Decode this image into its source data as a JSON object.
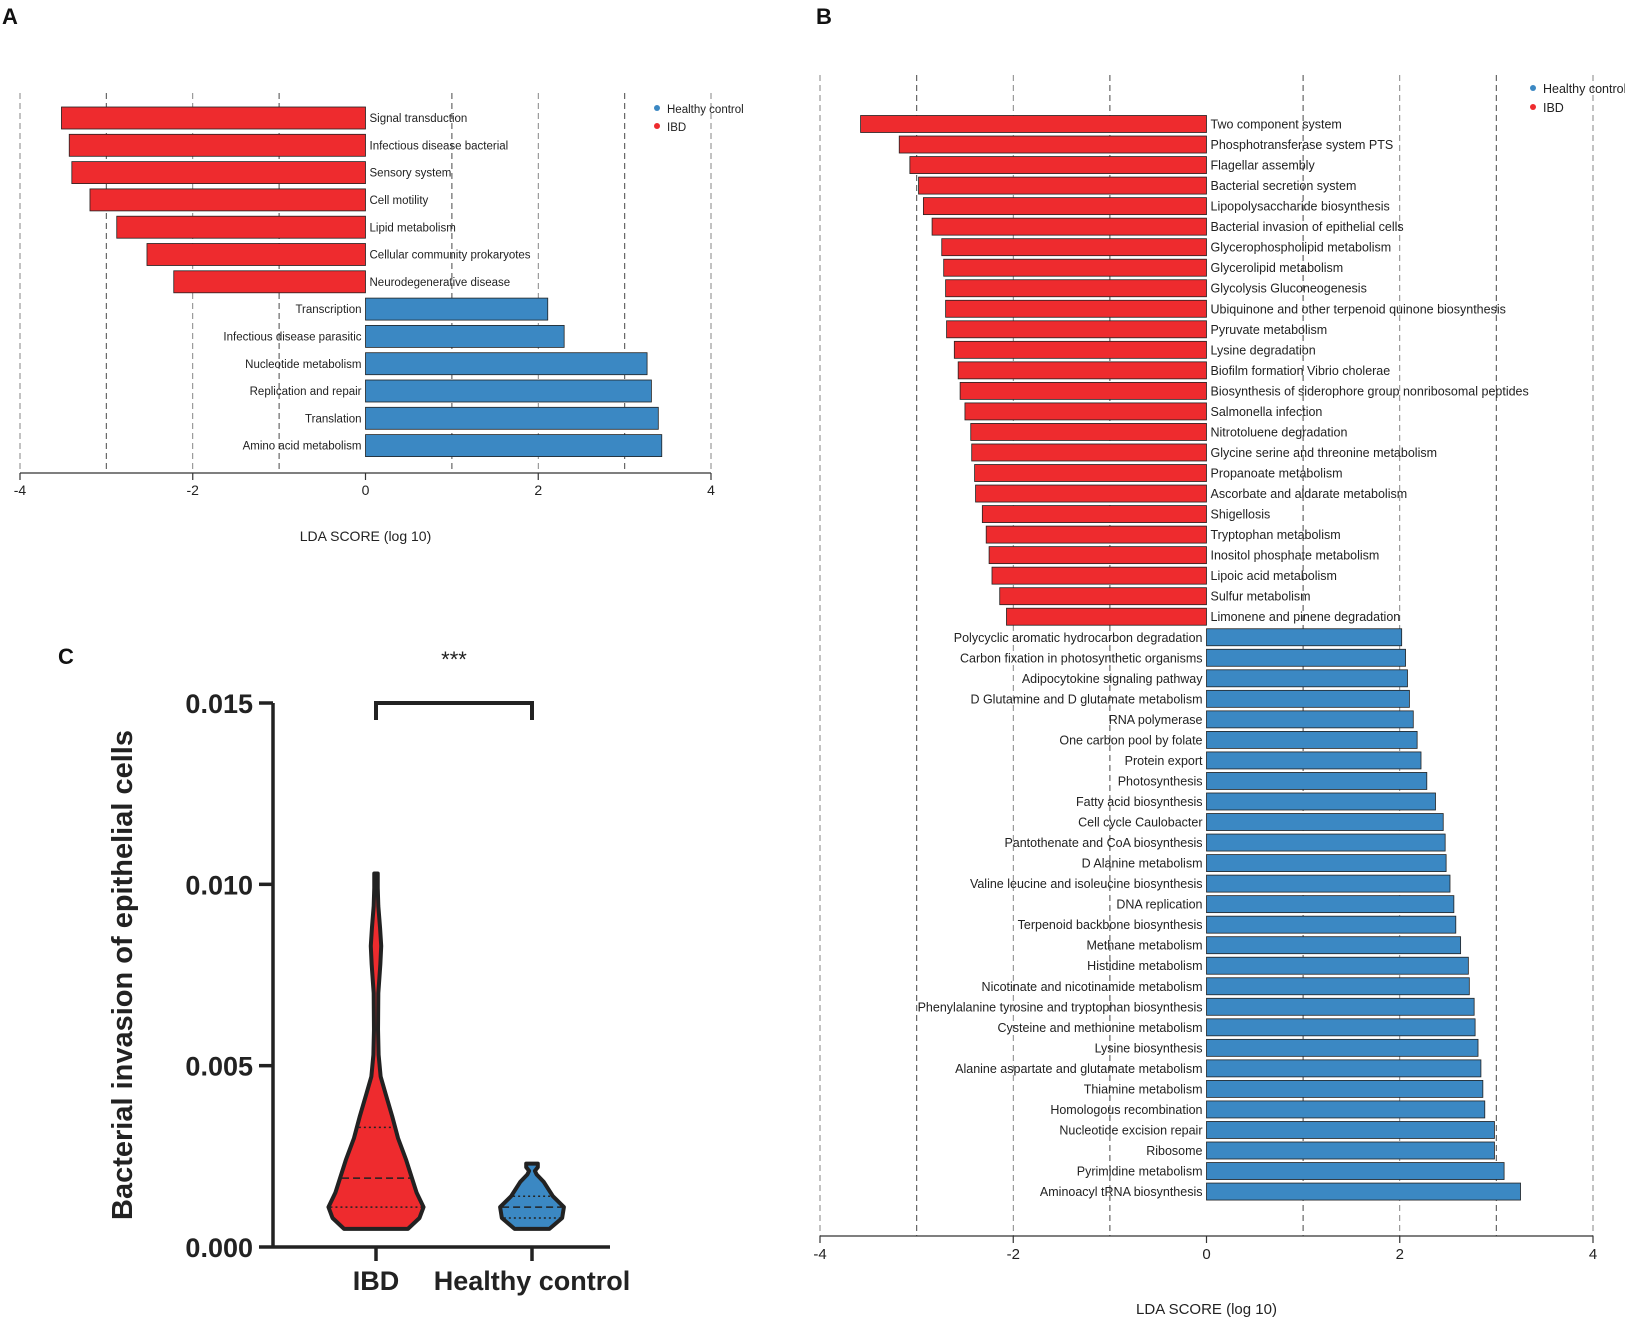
{
  "colors": {
    "ibd": "#ee2b2e",
    "healthy": "#3b88c3",
    "axis": "#333333",
    "grid": "#666666"
  },
  "panels": {
    "a": "A",
    "b": "B",
    "c": "C"
  },
  "chart_data": [
    {
      "id": "A",
      "type": "bar",
      "orientation": "horizontal",
      "xlabel": "LDA SCORE (log 10)",
      "xlim": [
        -4,
        4
      ],
      "xticks": [
        -4,
        -2,
        0,
        2,
        4
      ],
      "grid": "dashed vertical",
      "legend": {
        "placement": "top-right",
        "entries": [
          {
            "name": "Healthy control",
            "color": "#3b88c3"
          },
          {
            "name": "IBD",
            "color": "#ee2b2e"
          }
        ]
      },
      "bars": [
        {
          "label": "Signal transduction",
          "value": -3.52,
          "group": "IBD"
        },
        {
          "label": "Infectious disease bacterial",
          "value": -3.43,
          "group": "IBD"
        },
        {
          "label": "Sensory system",
          "value": -3.4,
          "group": "IBD"
        },
        {
          "label": "Cell motility",
          "value": -3.19,
          "group": "IBD"
        },
        {
          "label": "Lipid metabolism",
          "value": -2.88,
          "group": "IBD"
        },
        {
          "label": "Cellular community prokaryotes",
          "value": -2.53,
          "group": "IBD"
        },
        {
          "label": "Neurodegenerative disease",
          "value": -2.22,
          "group": "IBD"
        },
        {
          "label": "Transcription",
          "value": 2.11,
          "group": "Healthy control"
        },
        {
          "label": "Infectious disease parasitic",
          "value": 2.3,
          "group": "Healthy control"
        },
        {
          "label": "Nucleotide metabolism",
          "value": 3.26,
          "group": "Healthy control"
        },
        {
          "label": "Replication and repair",
          "value": 3.31,
          "group": "Healthy control"
        },
        {
          "label": "Translation",
          "value": 3.39,
          "group": "Healthy control"
        },
        {
          "label": "Amino acid metabolism",
          "value": 3.43,
          "group": "Healthy control"
        }
      ]
    },
    {
      "id": "B",
      "type": "bar",
      "orientation": "horizontal",
      "xlabel": "LDA SCORE (log 10)",
      "xlim": [
        -4,
        4
      ],
      "xticks": [
        -4,
        -2,
        0,
        2,
        4
      ],
      "grid": "dashed vertical",
      "legend": {
        "placement": "top-right",
        "entries": [
          {
            "name": "Healthy control",
            "color": "#3b88c3"
          },
          {
            "name": "IBD",
            "color": "#ee2b2e"
          }
        ]
      },
      "bars": [
        {
          "label": "Two component system",
          "value": -3.58,
          "group": "IBD"
        },
        {
          "label": "Phosphotransferase system PTS",
          "value": -3.18,
          "group": "IBD"
        },
        {
          "label": "Flagellar assembly",
          "value": -3.07,
          "group": "IBD"
        },
        {
          "label": "Bacterial secretion system",
          "value": -2.98,
          "group": "IBD"
        },
        {
          "label": "Lipopolysaccharide biosynthesis",
          "value": -2.93,
          "group": "IBD"
        },
        {
          "label": "Bacterial invasion of epithelial cells",
          "value": -2.84,
          "group": "IBD"
        },
        {
          "label": "Glycerophospholipid metabolism",
          "value": -2.74,
          "group": "IBD"
        },
        {
          "label": "Glycerolipid metabolism",
          "value": -2.72,
          "group": "IBD"
        },
        {
          "label": "Glycolysis Gluconeogenesis",
          "value": -2.7,
          "group": "IBD"
        },
        {
          "label": "Ubiquinone and other terpenoid quinone biosynthesis",
          "value": -2.7,
          "group": "IBD"
        },
        {
          "label": "Pyruvate metabolism",
          "value": -2.69,
          "group": "IBD"
        },
        {
          "label": "Lysine degradation",
          "value": -2.61,
          "group": "IBD"
        },
        {
          "label": "Biofilm formation Vibrio cholerae",
          "value": -2.57,
          "group": "IBD"
        },
        {
          "label": "Biosynthesis of siderophore group nonribosomal peptides",
          "value": -2.55,
          "group": "IBD"
        },
        {
          "label": "Salmonella infection",
          "value": -2.5,
          "group": "IBD"
        },
        {
          "label": "Nitrotoluene degradation",
          "value": -2.44,
          "group": "IBD"
        },
        {
          "label": "Glycine serine and threonine metabolism",
          "value": -2.43,
          "group": "IBD"
        },
        {
          "label": "Propanoate metabolism",
          "value": -2.4,
          "group": "IBD"
        },
        {
          "label": "Ascorbate and aldarate metabolism",
          "value": -2.39,
          "group": "IBD"
        },
        {
          "label": "Shigellosis",
          "value": -2.32,
          "group": "IBD"
        },
        {
          "label": "Tryptophan metabolism",
          "value": -2.28,
          "group": "IBD"
        },
        {
          "label": "Inositol phosphate metabolism",
          "value": -2.25,
          "group": "IBD"
        },
        {
          "label": "Lipoic acid metabolism",
          "value": -2.22,
          "group": "IBD"
        },
        {
          "label": "Sulfur metabolism",
          "value": -2.14,
          "group": "IBD"
        },
        {
          "label": "Limonene and pinene degradation",
          "value": -2.07,
          "group": "IBD"
        },
        {
          "label": "Polycyclic aromatic hydrocarbon degradation",
          "value": 2.02,
          "group": "Healthy control"
        },
        {
          "label": "Carbon fixation in photosynthetic organisms",
          "value": 2.06,
          "group": "Healthy control"
        },
        {
          "label": "Adipocytokine signaling pathway",
          "value": 2.08,
          "group": "Healthy control"
        },
        {
          "label": "D Glutamine and D glutamate metabolism",
          "value": 2.1,
          "group": "Healthy control"
        },
        {
          "label": "RNA polymerase",
          "value": 2.14,
          "group": "Healthy control"
        },
        {
          "label": "One carbon pool by folate",
          "value": 2.18,
          "group": "Healthy control"
        },
        {
          "label": "Protein export",
          "value": 2.22,
          "group": "Healthy control"
        },
        {
          "label": "Photosynthesis",
          "value": 2.28,
          "group": "Healthy control"
        },
        {
          "label": "Fatty acid biosynthesis",
          "value": 2.37,
          "group": "Healthy control"
        },
        {
          "label": "Cell cycle Caulobacter",
          "value": 2.45,
          "group": "Healthy control"
        },
        {
          "label": "Pantothenate and CoA biosynthesis",
          "value": 2.47,
          "group": "Healthy control"
        },
        {
          "label": "D Alanine metabolism",
          "value": 2.48,
          "group": "Healthy control"
        },
        {
          "label": "Valine leucine and isoleucine biosynthesis",
          "value": 2.52,
          "group": "Healthy control"
        },
        {
          "label": "DNA replication",
          "value": 2.56,
          "group": "Healthy control"
        },
        {
          "label": "Terpenoid backbone biosynthesis",
          "value": 2.58,
          "group": "Healthy control"
        },
        {
          "label": "Methane metabolism",
          "value": 2.63,
          "group": "Healthy control"
        },
        {
          "label": "Histidine metabolism",
          "value": 2.71,
          "group": "Healthy control"
        },
        {
          "label": "Nicotinate and nicotinamide metabolism",
          "value": 2.72,
          "group": "Healthy control"
        },
        {
          "label": "Phenylalanine tyrosine and tryptophan biosynthesis",
          "value": 2.77,
          "group": "Healthy control"
        },
        {
          "label": "Cysteine and methionine metabolism",
          "value": 2.78,
          "group": "Healthy control"
        },
        {
          "label": "Lysine biosynthesis",
          "value": 2.81,
          "group": "Healthy control"
        },
        {
          "label": "Alanine aspartate and glutamate metabolism",
          "value": 2.84,
          "group": "Healthy control"
        },
        {
          "label": "Thiamine metabolism",
          "value": 2.86,
          "group": "Healthy control"
        },
        {
          "label": "Homologous recombination",
          "value": 2.88,
          "group": "Healthy control"
        },
        {
          "label": "Nucleotide excision repair",
          "value": 2.98,
          "group": "Healthy control"
        },
        {
          "label": "Ribosome",
          "value": 2.98,
          "group": "Healthy control"
        },
        {
          "label": "Pyrimidine metabolism",
          "value": 3.08,
          "group": "Healthy control"
        },
        {
          "label": "Aminoacyl tRNA biosynthesis",
          "value": 3.25,
          "group": "Healthy control"
        }
      ]
    },
    {
      "id": "C",
      "type": "violin",
      "ylabel": "Bacterial invasion of epithelial cells",
      "ylim": [
        0,
        0.015
      ],
      "yticks": [
        "0.000",
        "0.005",
        "0.010",
        "0.015"
      ],
      "significance": "***",
      "groups": [
        {
          "name": "IBD",
          "color": "#ee2b2e",
          "min": 0.0005,
          "max": 0.0103,
          "q1": 0.0011,
          "median": 0.0019,
          "q3": 0.0033,
          "density": [
            [
              0.0005,
              0.55
            ],
            [
              0.0008,
              0.75
            ],
            [
              0.0011,
              0.82
            ],
            [
              0.0015,
              0.7
            ],
            [
              0.0019,
              0.62
            ],
            [
              0.0024,
              0.52
            ],
            [
              0.003,
              0.38
            ],
            [
              0.0036,
              0.28
            ],
            [
              0.0042,
              0.17
            ],
            [
              0.0047,
              0.08
            ],
            [
              0.0053,
              0.045
            ],
            [
              0.006,
              0.035
            ],
            [
              0.007,
              0.04
            ],
            [
              0.0078,
              0.075
            ],
            [
              0.0083,
              0.09
            ],
            [
              0.0088,
              0.07
            ],
            [
              0.0094,
              0.04
            ],
            [
              0.0099,
              0.03
            ],
            [
              0.0103,
              0.03
            ]
          ]
        },
        {
          "name": "Healthy control",
          "color": "#3b88c3",
          "min": 0.0005,
          "max": 0.0023,
          "q1": 0.0008,
          "median": 0.0011,
          "q3": 0.0014,
          "density": [
            [
              0.0005,
              0.3
            ],
            [
              0.0008,
              0.52
            ],
            [
              0.0011,
              0.55
            ],
            [
              0.0014,
              0.36
            ],
            [
              0.0016,
              0.28
            ],
            [
              0.0018,
              0.2
            ],
            [
              0.002,
              0.08
            ],
            [
              0.0021,
              0.05
            ],
            [
              0.0022,
              0.1
            ],
            [
              0.0023,
              0.1
            ]
          ]
        }
      ]
    }
  ]
}
